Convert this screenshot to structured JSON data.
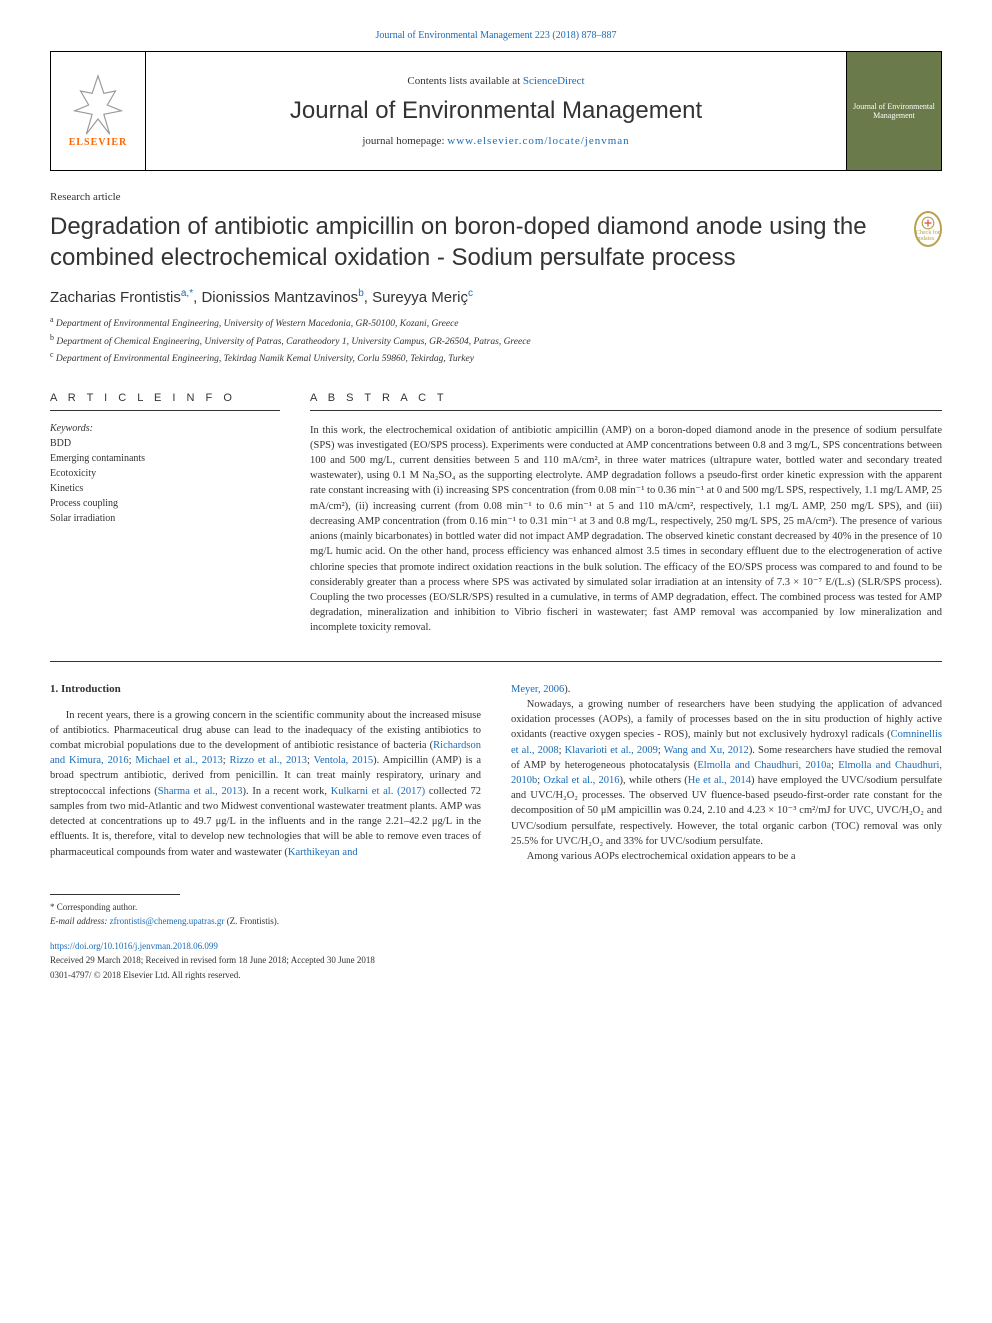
{
  "header": {
    "topLink": "Journal of Environmental Management 223 (2018) 878–887",
    "contentsPrefix": "Contents lists available at ",
    "contentsLink": "ScienceDirect",
    "journalName": "Journal of Environmental Management",
    "homepagePrefix": "journal homepage: ",
    "homepageUrl": "www.elsevier.com/locate/jenvman",
    "elsevier": "ELSEVIER",
    "coverLabel": "Journal of Environmental Management"
  },
  "article": {
    "type": "Research article",
    "title": "Degradation of antibiotic ampicillin on boron-doped diamond anode using the combined electrochemical oxidation - Sodium persulfate process",
    "checkBadge": "Check for updates"
  },
  "authors": {
    "line": "Zacharias Frontistis",
    "a_sup": "a,*",
    "sep1": ", Dionissios Mantzavinos",
    "b_sup": "b",
    "sep2": ", Sureyya Meriç",
    "c_sup": "c"
  },
  "affiliations": {
    "a": "Department of Environmental Engineering, University of Western Macedonia, GR-50100, Kozani, Greece",
    "b": "Department of Chemical Engineering, University of Patras, Caratheodory 1, University Campus, GR-26504, Patras, Greece",
    "c": "Department of Environmental Engineering, Tekirdag Namik Kemal University, Corlu 59860, Tekirdag, Turkey"
  },
  "sections": {
    "infoHead": "A R T I C L E  I N F O",
    "abstractHead": "A B S T R A C T"
  },
  "keywords": {
    "label": "Keywords:",
    "items": [
      "BDD",
      "Emerging contaminants",
      "Ecotoxicity",
      "Kinetics",
      "Process coupling",
      "Solar irradiation"
    ]
  },
  "abstract": "In this work, the electrochemical oxidation of antibiotic ampicillin (AMP) on a boron-doped diamond anode in the presence of sodium persulfate (SPS) was investigated (EO/SPS process). Experiments were conducted at AMP concentrations between 0.8 and 3 mg/L, SPS concentrations between 100 and 500 mg/L, current densities between 5 and 110 mA/cm², in three water matrices (ultrapure water, bottled water and secondary treated wastewater), using 0.1 M Na₂SO₄ as the supporting electrolyte. AMP degradation follows a pseudo-first order kinetic expression with the apparent rate constant increasing with (i) increasing SPS concentration (from 0.08 min⁻¹ to 0.36 min⁻¹ at 0 and 500 mg/L SPS, respectively, 1.1 mg/L AMP, 25 mA/cm²), (ii) increasing current (from 0.08 min⁻¹ to 0.6 min⁻¹ at 5 and 110 mA/cm², respectively, 1.1 mg/L AMP, 250 mg/L SPS), and (iii) decreasing AMP concentration (from 0.16 min⁻¹ to 0.31 min⁻¹ at 3 and 0.8 mg/L, respectively, 250 mg/L SPS, 25 mA/cm²). The presence of various anions (mainly bicarbonates) in bottled water did not impact AMP degradation. The observed kinetic constant decreased by 40% in the presence of 10 mg/L humic acid. On the other hand, process efficiency was enhanced almost 3.5 times in secondary effluent due to the electrogeneration of active chlorine species that promote indirect oxidation reactions in the bulk solution. The efficacy of the EO/SPS process was compared to and found to be considerably greater than a process where SPS was activated by simulated solar irradiation at an intensity of 7.3 × 10⁻⁷ E/(L.s) (SLR/SPS process). Coupling the two processes (EO/SLR/SPS) resulted in a cumulative, in terms of AMP degradation, effect. The combined process was tested for AMP degradation, mineralization and inhibition to Vibrio fischeri in wastewater; fast AMP removal was accompanied by low mineralization and incomplete toxicity removal.",
  "intro": {
    "heading": "1. Introduction",
    "leftPara": "In recent years, there is a growing concern in the scientific community about the increased misuse of antibiotics. Pharmaceutical drug abuse can lead to the inadequacy of the existing antibiotics to combat microbial populations due to the development of antibiotic resistance of bacteria (|Richardson and Kimura, 2016|; |Michael et al., 2013|; |Rizzo et al., 2013|; |Ventola, 2015|). Ampicillin (AMP) is a broad spectrum antibiotic, derived from penicillin. It can treat mainly respiratory, urinary and streptococcal infections (|Sharma et al., 2013|). In a recent work, |Kulkarni et al. (2017)| collected 72 samples from two mid-Atlantic and two Midwest conventional wastewater treatment plants. AMP was detected at concentrations up to 49.7 μg/L in the influents and in the range 2.21–42.2 μg/L in the effluents. It is, therefore, vital to develop new technologies that will be able to remove even traces of pharmaceutical compounds from water and wastewater (|Karthikeyan and",
    "rightTop": "|Meyer, 2006|).",
    "rightPara1": "Nowadays, a growing number of researchers have been studying the application of advanced oxidation processes (AOPs), a family of processes based on the in situ production of highly active oxidants (reactive oxygen species - ROS), mainly but not exclusively hydroxyl radicals (|Comninellis et al., 2008|; |Klavarioti et al., 2009|; |Wang and Xu, 2012|). Some researchers have studied the removal of AMP by heterogeneous photocatalysis (|Elmolla and Chaudhuri, 2010a|; |Elmolla and Chaudhuri, 2010b|; |Ozkal et al., 2016|), while others (|He et al., 2014|) have employed the UVC/sodium persulfate and UVC/H₂O₂ processes. The observed UV fluence-based pseudo-first-order rate constant for the decomposition of 50 μM ampicillin was 0.24, 2.10 and 4.23 × 10⁻³ cm²/mJ for UVC, UVC/H₂O₂ and UVC/sodium persulfate, respectively. However, the total organic carbon (TOC) removal was only 25.5% for UVC/H₂O₂ and 33% for UVC/sodium persulfate.",
    "rightPara2": "Among various AOPs electrochemical oxidation appears to be a"
  },
  "footer": {
    "corr": "* Corresponding author.",
    "emailLabel": "E-mail address: ",
    "email": "zfrontistis@chemeng.upatras.gr",
    "emailSuffix": " (Z. Frontistis).",
    "doi": "https://doi.org/10.1016/j.jenvman.2018.06.099",
    "received": "Received 29 March 2018; Received in revised form 18 June 2018; Accepted 30 June 2018",
    "rights": "0301-4797/ © 2018 Elsevier Ltd. All rights reserved."
  },
  "colors": {
    "link": "#1a6bb8",
    "elsevierOrange": "#ff6600",
    "coverGreen": "#6a7a4a",
    "badgeGold": "#b8a24d",
    "text": "#333333",
    "background": "#ffffff"
  },
  "typography": {
    "titleFont": "Arial",
    "bodyFont": "Georgia",
    "titleSize": 24,
    "bodySize": 10.5,
    "abstractSize": 10.5,
    "affiliationSize": 9.5,
    "footerSize": 9
  },
  "layout": {
    "pageWidth": 992,
    "pageHeight": 1323,
    "columns": 2,
    "columnGap": 30
  }
}
